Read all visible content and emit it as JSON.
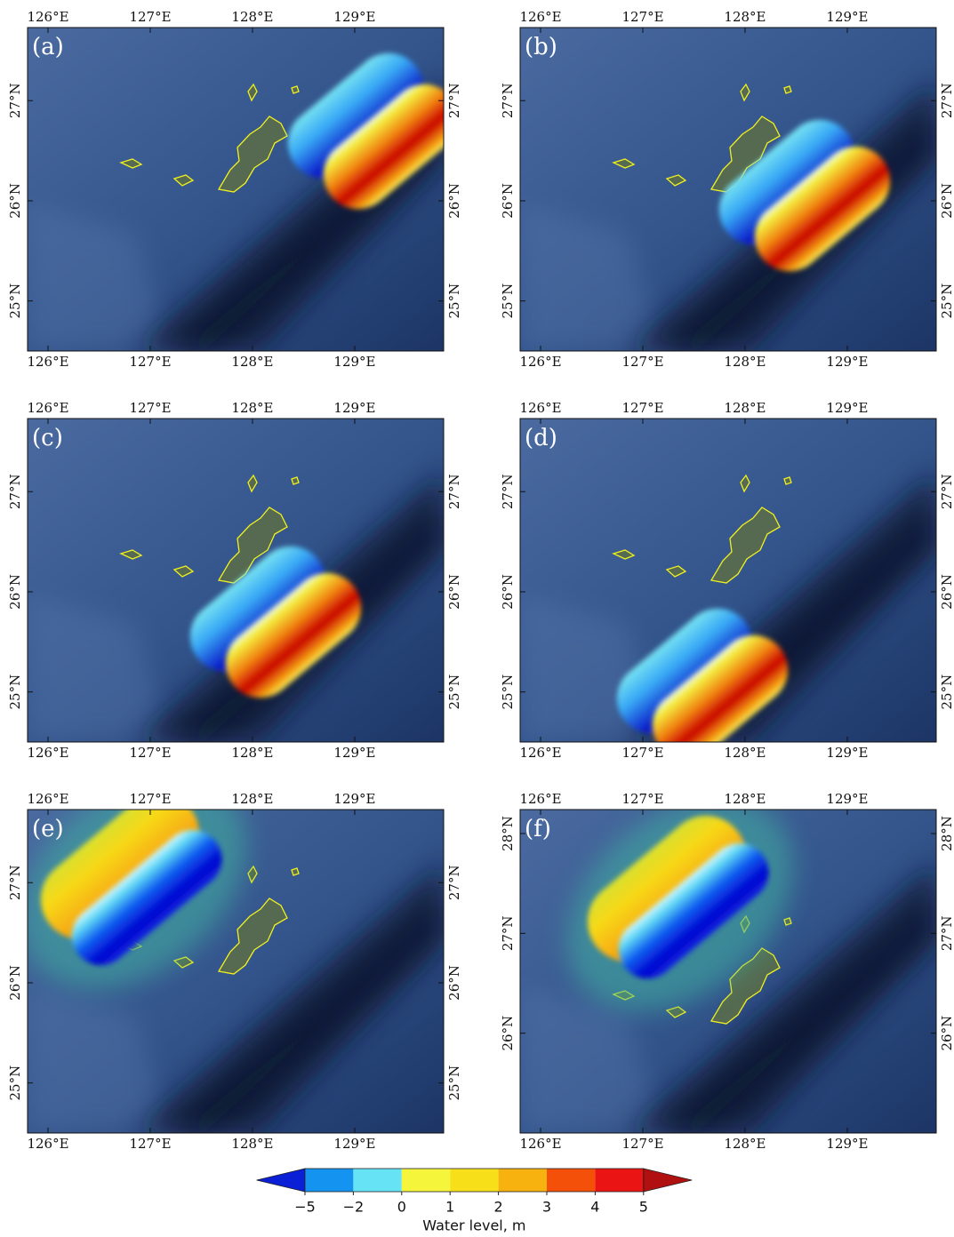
{
  "panels": [
    {
      "label": "(a)",
      "xlim": [
        125.8,
        129.87
      ],
      "ylim": [
        24.5,
        27.73
      ],
      "xticks": [
        {
          "value": 126,
          "label": "126°E"
        },
        {
          "value": 127,
          "label": "127°E"
        },
        {
          "value": 128,
          "label": "128°E"
        },
        {
          "value": 129,
          "label": "129°E"
        }
      ],
      "yticks": [
        {
          "value": 25,
          "label": "25°N"
        },
        {
          "value": 26,
          "label": "26°N"
        },
        {
          "value": 27,
          "label": "27°N"
        }
      ]
    },
    {
      "label": "(b)",
      "xlim": [
        125.8,
        129.87
      ],
      "ylim": [
        24.5,
        27.73
      ],
      "xticks": [
        {
          "value": 126,
          "label": "126°E"
        },
        {
          "value": 127,
          "label": "127°E"
        },
        {
          "value": 128,
          "label": "128°E"
        },
        {
          "value": 129,
          "label": "129°E"
        }
      ],
      "yticks": [
        {
          "value": 25,
          "label": "25°N"
        },
        {
          "value": 26,
          "label": "26°N"
        },
        {
          "value": 27,
          "label": "27°N"
        }
      ]
    },
    {
      "label": "(c)",
      "xlim": [
        125.8,
        129.87
      ],
      "ylim": [
        24.5,
        27.73
      ],
      "xticks": [
        {
          "value": 126,
          "label": "126°E"
        },
        {
          "value": 127,
          "label": "127°E"
        },
        {
          "value": 128,
          "label": "128°E"
        },
        {
          "value": 129,
          "label": "129°E"
        }
      ],
      "yticks": [
        {
          "value": 25,
          "label": "25°N"
        },
        {
          "value": 26,
          "label": "26°N"
        },
        {
          "value": 27,
          "label": "27°N"
        }
      ]
    },
    {
      "label": "(d)",
      "xlim": [
        125.8,
        129.87
      ],
      "ylim": [
        24.5,
        27.73
      ],
      "xticks": [
        {
          "value": 126,
          "label": "126°E"
        },
        {
          "value": 127,
          "label": "127°E"
        },
        {
          "value": 128,
          "label": "128°E"
        },
        {
          "value": 129,
          "label": "129°E"
        }
      ],
      "yticks": [
        {
          "value": 25,
          "label": "25°N"
        },
        {
          "value": 26,
          "label": "26°N"
        },
        {
          "value": 27,
          "label": "27°N"
        }
      ]
    },
    {
      "label": "(e)",
      "xlim": [
        125.8,
        129.87
      ],
      "ylim": [
        24.5,
        27.73
      ],
      "xticks": [
        {
          "value": 126,
          "label": "126°E"
        },
        {
          "value": 127,
          "label": "127°E"
        },
        {
          "value": 128,
          "label": "128°E"
        },
        {
          "value": 129,
          "label": "129°E"
        }
      ],
      "yticks": [
        {
          "value": 25,
          "label": "25°N"
        },
        {
          "value": 26,
          "label": "26°N"
        },
        {
          "value": 27,
          "label": "27°N"
        }
      ]
    },
    {
      "label": "(f)",
      "xlim": [
        125.8,
        129.87
      ],
      "ylim": [
        25.0,
        28.24
      ],
      "xticks": [
        {
          "value": 126,
          "label": "126°E"
        },
        {
          "value": 127,
          "label": "127°E"
        },
        {
          "value": 128,
          "label": "128°E"
        },
        {
          "value": 129,
          "label": "129°E"
        }
      ],
      "yticks": [
        {
          "value": 26,
          "label": "26°N"
        },
        {
          "value": 27,
          "label": "27°N"
        },
        {
          "value": 28,
          "label": "28°N"
        }
      ]
    }
  ],
  "colorbar": {
    "label": "Water level, m",
    "ticks": [
      {
        "value": -5,
        "label": "−5"
      },
      {
        "value": -2,
        "label": "−2"
      },
      0,
      1,
      2,
      3,
      4,
      5
    ],
    "colors": [
      "#1493f0",
      "#66e3f5",
      "#f5f53c",
      "#f7e01a",
      "#f7b20f",
      "#f5500a",
      "#eb1414"
    ],
    "under_color": "#0a1fd6",
    "over_color": "#b0100f"
  }
}
